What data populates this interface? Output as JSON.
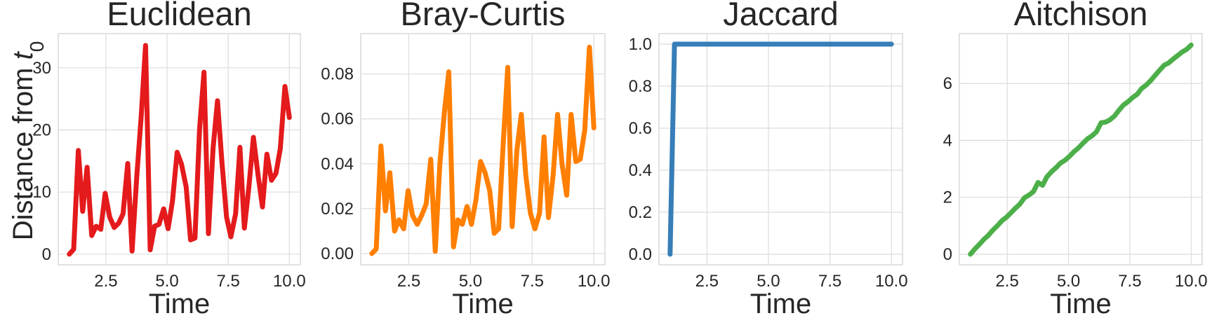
{
  "figure": {
    "ylabel_text": "Distance from ",
    "ylabel_var": "t",
    "ylabel_sub": "0"
  },
  "chart_data": [
    {
      "type": "line",
      "title": "Euclidean",
      "xlabel": "Time",
      "ylabel": "Distance from t0",
      "xlim": [
        0.55,
        10.45
      ],
      "ylim": [
        -1.7,
        35.5
      ],
      "xticks": [
        2.5,
        5.0,
        7.5,
        10.0
      ],
      "xtick_labels": [
        "2.5",
        "5.0",
        "7.5",
        "10.0"
      ],
      "yticks": [
        0,
        10,
        20,
        30
      ],
      "ytick_labels": [
        "0",
        "10",
        "20",
        "30"
      ],
      "grid": true,
      "color": "#e41a1c",
      "x": [
        1.0,
        1.18,
        1.37,
        1.55,
        1.73,
        1.92,
        2.1,
        2.29,
        2.47,
        2.65,
        2.84,
        3.02,
        3.2,
        3.39,
        3.57,
        3.76,
        3.94,
        4.12,
        4.31,
        4.49,
        4.67,
        4.86,
        5.04,
        5.22,
        5.41,
        5.59,
        5.78,
        5.96,
        6.14,
        6.33,
        6.51,
        6.69,
        6.88,
        7.06,
        7.24,
        7.43,
        7.61,
        7.8,
        7.98,
        8.16,
        8.35,
        8.53,
        8.71,
        8.9,
        9.08,
        9.27,
        9.45,
        9.63,
        9.82,
        10.0
      ],
      "y": [
        0.0,
        0.8,
        16.7,
        6.9,
        14.0,
        3.0,
        4.5,
        4.0,
        9.8,
        6.0,
        4.3,
        5.0,
        6.5,
        14.6,
        0.5,
        12.5,
        22.0,
        33.6,
        0.7,
        4.5,
        4.8,
        7.3,
        4.1,
        8.5,
        16.4,
        14.5,
        10.8,
        2.3,
        2.6,
        20.2,
        29.3,
        3.3,
        17.0,
        24.7,
        15.0,
        6.0,
        2.8,
        6.5,
        17.2,
        4.2,
        11.0,
        18.8,
        13.0,
        7.6,
        16.1,
        11.9,
        13.0,
        17.0,
        27.0,
        22.0
      ]
    },
    {
      "type": "line",
      "title": "Bray-Curtis",
      "xlabel": "Time",
      "ylabel": "",
      "xlim": [
        0.55,
        10.45
      ],
      "ylim": [
        -0.005,
        0.098
      ],
      "xticks": [
        2.5,
        5.0,
        7.5,
        10.0
      ],
      "xtick_labels": [
        "2.5",
        "5.0",
        "7.5",
        "10.0"
      ],
      "yticks": [
        0.0,
        0.02,
        0.04,
        0.06,
        0.08
      ],
      "ytick_labels": [
        "0.00",
        "0.02",
        "0.04",
        "0.06",
        "0.08"
      ],
      "grid": true,
      "color": "#ff7f00",
      "x": [
        1.0,
        1.18,
        1.37,
        1.55,
        1.73,
        1.92,
        2.1,
        2.29,
        2.47,
        2.65,
        2.84,
        3.02,
        3.2,
        3.39,
        3.57,
        3.76,
        3.94,
        4.12,
        4.31,
        4.49,
        4.67,
        4.86,
        5.04,
        5.22,
        5.41,
        5.59,
        5.78,
        5.96,
        6.14,
        6.33,
        6.51,
        6.69,
        6.88,
        7.06,
        7.24,
        7.43,
        7.61,
        7.8,
        7.98,
        8.16,
        8.35,
        8.53,
        8.71,
        8.9,
        9.08,
        9.27,
        9.45,
        9.63,
        9.82,
        10.0
      ],
      "y": [
        0.0,
        0.002,
        0.048,
        0.019,
        0.036,
        0.01,
        0.015,
        0.011,
        0.028,
        0.017,
        0.013,
        0.017,
        0.022,
        0.042,
        0.001,
        0.04,
        0.063,
        0.081,
        0.003,
        0.015,
        0.013,
        0.021,
        0.013,
        0.024,
        0.041,
        0.036,
        0.028,
        0.009,
        0.011,
        0.05,
        0.083,
        0.012,
        0.046,
        0.062,
        0.035,
        0.018,
        0.011,
        0.018,
        0.052,
        0.016,
        0.035,
        0.062,
        0.04,
        0.026,
        0.062,
        0.041,
        0.042,
        0.055,
        0.092,
        0.056
      ]
    },
    {
      "type": "line",
      "title": "Jaccard",
      "xlabel": "Time",
      "ylabel": "",
      "xlim": [
        0.55,
        10.45
      ],
      "ylim": [
        -0.05,
        1.05
      ],
      "xticks": [
        2.5,
        5.0,
        7.5,
        10.0
      ],
      "xtick_labels": [
        "2.5",
        "5.0",
        "7.5",
        "10.0"
      ],
      "yticks": [
        0.0,
        0.2,
        0.4,
        0.6,
        0.8,
        1.0
      ],
      "ytick_labels": [
        "0.0",
        "0.2",
        "0.4",
        "0.6",
        "0.8",
        "1.0"
      ],
      "grid": true,
      "color": "#377eb8",
      "x": [
        1.0,
        1.18,
        10.0
      ],
      "y": [
        0.0,
        1.0,
        1.0
      ]
    },
    {
      "type": "line",
      "title": "Aitchison",
      "xlabel": "Time",
      "ylabel": "",
      "xlim": [
        0.55,
        10.45
      ],
      "ylim": [
        -0.37,
        7.75
      ],
      "xticks": [
        2.5,
        5.0,
        7.5,
        10.0
      ],
      "xtick_labels": [
        "2.5",
        "5.0",
        "7.5",
        "10.0"
      ],
      "yticks": [
        0,
        2,
        4,
        6
      ],
      "ytick_labels": [
        "0",
        "2",
        "4",
        "6"
      ],
      "grid": true,
      "color": "#4daf4a",
      "x": [
        1.0,
        1.18,
        1.37,
        1.55,
        1.73,
        1.92,
        2.1,
        2.29,
        2.47,
        2.65,
        2.84,
        3.02,
        3.2,
        3.39,
        3.57,
        3.76,
        3.94,
        4.12,
        4.31,
        4.49,
        4.67,
        4.86,
        5.04,
        5.22,
        5.41,
        5.59,
        5.78,
        5.96,
        6.14,
        6.33,
        6.51,
        6.69,
        6.88,
        7.06,
        7.24,
        7.43,
        7.61,
        7.8,
        7.98,
        8.16,
        8.35,
        8.53,
        8.71,
        8.9,
        9.08,
        9.27,
        9.45,
        9.63,
        9.82,
        10.0
      ],
      "y": [
        0.0,
        0.18,
        0.35,
        0.52,
        0.66,
        0.85,
        1.0,
        1.18,
        1.3,
        1.45,
        1.62,
        1.76,
        1.98,
        2.08,
        2.2,
        2.52,
        2.42,
        2.72,
        2.9,
        3.04,
        3.2,
        3.3,
        3.44,
        3.6,
        3.74,
        3.9,
        4.06,
        4.16,
        4.3,
        4.62,
        4.64,
        4.72,
        4.86,
        5.06,
        5.24,
        5.36,
        5.5,
        5.62,
        5.82,
        5.94,
        6.1,
        6.28,
        6.46,
        6.64,
        6.72,
        6.86,
        6.98,
        7.1,
        7.2,
        7.35
      ]
    }
  ]
}
